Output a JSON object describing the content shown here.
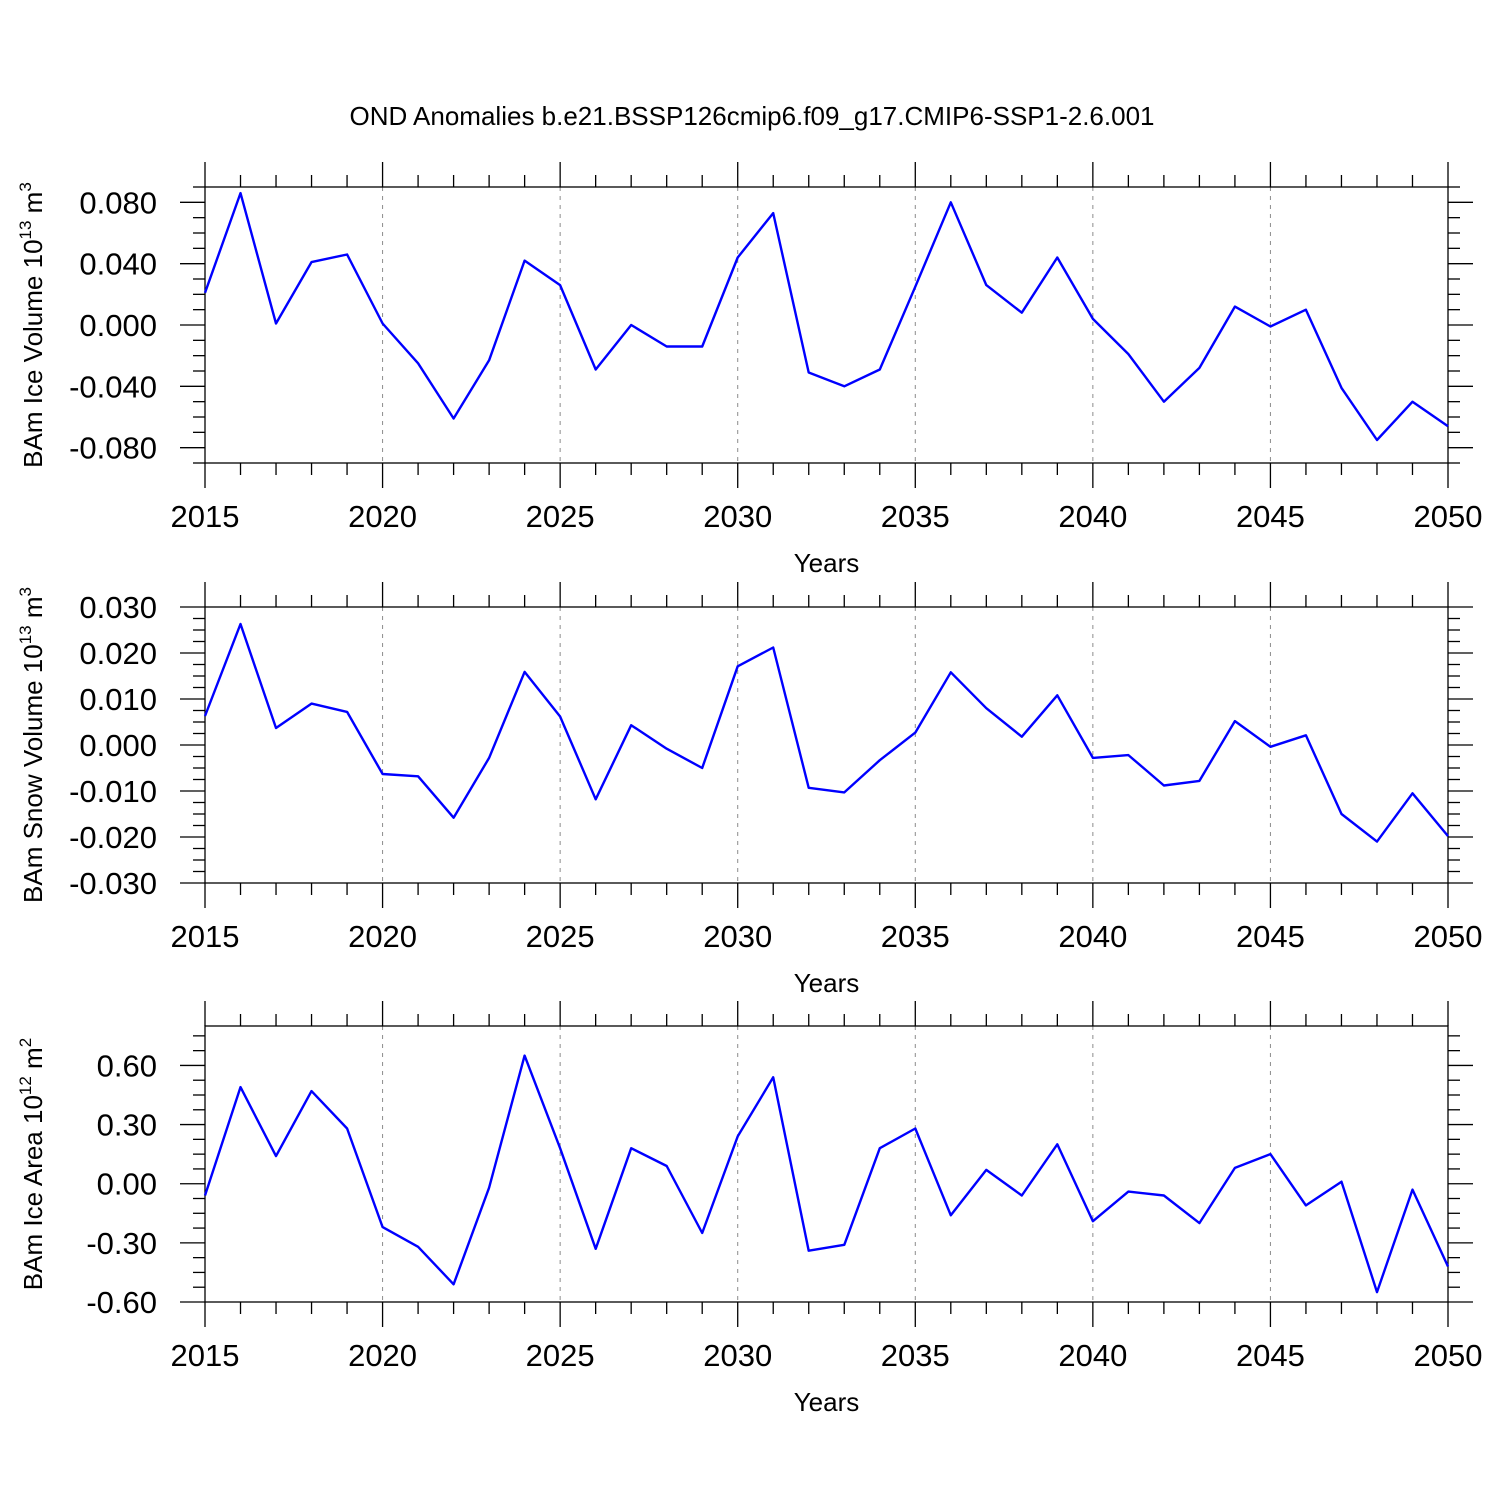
{
  "figure_title": "OND Anomalies b.e21.BSSP126cmip6.f09_g17.CMIP6-SSP1-2.6.001",
  "colors": {
    "line": "#0000ff",
    "grid": "#8c8c8c",
    "axes": "#000000"
  },
  "chart_data": [
    {
      "type": "line",
      "ylabel": {
        "prefix": "BAm Ice Volume 10",
        "exp": "13",
        "unit": " m",
        "unit_exp": "3"
      },
      "xlabel": "Years",
      "xlim": [
        2015,
        2050
      ],
      "ylim": [
        -0.09,
        0.09
      ],
      "xticks": [
        2015,
        2020,
        2025,
        2030,
        2035,
        2040,
        2045,
        2050
      ],
      "xtick_labels": [
        "2015",
        "2020",
        "2025",
        "2030",
        "2035",
        "2040",
        "2045",
        "2050"
      ],
      "yticks": [
        -0.08,
        -0.04,
        0,
        0.04,
        0.08
      ],
      "ytick_labels": [
        "-0.080",
        "-0.040",
        "0.000",
        "0.040",
        "0.080"
      ],
      "grid": "x-dashed",
      "x": [
        2015,
        2016,
        2017,
        2018,
        2019,
        2020,
        2021,
        2022,
        2023,
        2024,
        2025,
        2026,
        2027,
        2028,
        2029,
        2030,
        2031,
        2032,
        2033,
        2034,
        2035,
        2036,
        2037,
        2038,
        2039,
        2040,
        2041,
        2042,
        2043,
        2044,
        2045,
        2046,
        2047,
        2048,
        2049,
        2050
      ],
      "series": [
        {
          "values": [
            0.021,
            0.086,
            0.001,
            0.041,
            0.046,
            0.001,
            -0.025,
            -0.061,
            -0.023,
            0.042,
            0.026,
            -0.029,
            0.0,
            -0.014,
            -0.014,
            0.044,
            0.073,
            -0.031,
            -0.04,
            -0.029,
            0.025,
            0.08,
            0.026,
            0.008,
            0.044,
            0.004,
            -0.019,
            -0.05,
            -0.028,
            0.012,
            -0.001,
            0.01,
            -0.041,
            -0.075,
            -0.05,
            -0.066
          ]
        }
      ]
    },
    {
      "type": "line",
      "ylabel": {
        "prefix": "BAm Snow Volume 10",
        "exp": "13",
        "unit": " m",
        "unit_exp": "3"
      },
      "xlabel": "Years",
      "xlim": [
        2015,
        2050
      ],
      "ylim": [
        -0.03,
        0.03
      ],
      "xticks": [
        2015,
        2020,
        2025,
        2030,
        2035,
        2040,
        2045,
        2050
      ],
      "xtick_labels": [
        "2015",
        "2020",
        "2025",
        "2030",
        "2035",
        "2040",
        "2045",
        "2050"
      ],
      "yticks": [
        -0.03,
        -0.02,
        -0.01,
        0,
        0.01,
        0.02,
        0.03
      ],
      "ytick_labels": [
        "-0.030",
        "-0.020",
        "-0.010",
        "0.000",
        "0.010",
        "0.020",
        "0.030"
      ],
      "grid": "x-dashed",
      "x": [
        2015,
        2016,
        2017,
        2018,
        2019,
        2020,
        2021,
        2022,
        2023,
        2024,
        2025,
        2026,
        2027,
        2028,
        2029,
        2030,
        2031,
        2032,
        2033,
        2034,
        2035,
        2036,
        2037,
        2038,
        2039,
        2040,
        2041,
        2042,
        2043,
        2044,
        2045,
        2046,
        2047,
        2048,
        2049,
        2050
      ],
      "series": [
        {
          "values": [
            0.0063,
            0.0263,
            0.0037,
            0.009,
            0.0072,
            -0.0063,
            -0.0068,
            -0.0158,
            -0.0028,
            0.0159,
            0.0062,
            -0.0118,
            0.0043,
            -0.0008,
            -0.005,
            0.0171,
            0.0212,
            -0.0093,
            -0.0103,
            -0.0033,
            0.0027,
            0.0158,
            0.008,
            0.0018,
            0.0108,
            -0.0028,
            -0.0022,
            -0.0088,
            -0.0078,
            0.0052,
            -0.0004,
            0.0021,
            -0.015,
            -0.021,
            -0.0105,
            -0.0198
          ]
        }
      ]
    },
    {
      "type": "line",
      "ylabel": {
        "prefix": "BAm Ice Area 10",
        "exp": "12",
        "unit": " m",
        "unit_exp": "2"
      },
      "xlabel": "Years",
      "xlim": [
        2015,
        2050
      ],
      "ylim": [
        -0.6,
        0.8
      ],
      "xticks": [
        2015,
        2020,
        2025,
        2030,
        2035,
        2040,
        2045,
        2050
      ],
      "xtick_labels": [
        "2015",
        "2020",
        "2025",
        "2030",
        "2035",
        "2040",
        "2045",
        "2050"
      ],
      "yticks": [
        -0.6,
        -0.3,
        0,
        0.3,
        0.6
      ],
      "ytick_labels": [
        "-0.60",
        "-0.30",
        "0.00",
        "0.30",
        "0.60"
      ],
      "grid": "x-dashed",
      "x": [
        2015,
        2016,
        2017,
        2018,
        2019,
        2020,
        2021,
        2022,
        2023,
        2024,
        2025,
        2026,
        2027,
        2028,
        2029,
        2030,
        2031,
        2032,
        2033,
        2034,
        2035,
        2036,
        2037,
        2038,
        2039,
        2040,
        2041,
        2042,
        2043,
        2044,
        2045,
        2046,
        2047,
        2048,
        2049,
        2050
      ],
      "series": [
        {
          "values": [
            -0.06,
            0.49,
            0.14,
            0.47,
            0.28,
            -0.22,
            -0.32,
            -0.51,
            -0.02,
            0.65,
            0.18,
            -0.33,
            0.18,
            0.09,
            -0.25,
            0.24,
            0.54,
            -0.34,
            -0.31,
            0.18,
            0.28,
            -0.16,
            0.07,
            -0.06,
            0.2,
            -0.19,
            -0.04,
            -0.06,
            -0.2,
            0.08,
            0.15,
            -0.11,
            0.01,
            -0.55,
            -0.03,
            -0.42
          ]
        }
      ]
    }
  ]
}
